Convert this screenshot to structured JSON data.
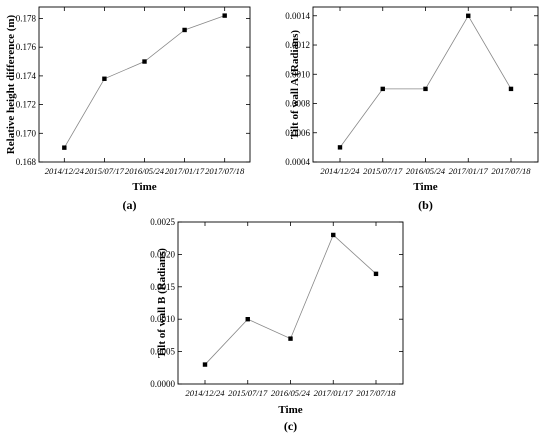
{
  "chart_data": [
    {
      "type": "line",
      "panel": "(a)",
      "categories": [
        "2014/12/24",
        "2015/07/17",
        "2016/05/24",
        "2017/01/17",
        "2017/07/18"
      ],
      "values": [
        0.169,
        0.1738,
        0.175,
        0.1772,
        0.1782
      ],
      "xlabel": "Time",
      "ylabel": "Relative height difference (m)",
      "ylim": [
        0.168,
        0.1788
      ],
      "yticks": [
        "0.168",
        "0.170",
        "0.172",
        "0.174",
        "0.176",
        "0.178"
      ],
      "grid": false,
      "line_color": "#888888",
      "marker_color": "#000000"
    },
    {
      "type": "line",
      "panel": "(b)",
      "categories": [
        "2014/12/24",
        "2015/07/17",
        "2016/05/24",
        "2017/01/17",
        "2017/07/18"
      ],
      "values": [
        0.0005,
        0.0009,
        0.0009,
        0.0014,
        0.0009
      ],
      "xlabel": "Time",
      "ylabel": "Tilt of wall A (Radians)",
      "ylim": [
        0.0004,
        0.00146
      ],
      "yticks": [
        "0.0004",
        "0.0006",
        "0.0008",
        "0.0010",
        "0.0012",
        "0.0014"
      ],
      "grid": false,
      "line_color": "#888888",
      "marker_color": "#000000"
    },
    {
      "type": "line",
      "panel": "(c)",
      "categories": [
        "2014/12/24",
        "2015/07/17",
        "2016/05/24",
        "2017/01/17",
        "2017/07/18"
      ],
      "values": [
        0.0003,
        0.001,
        0.0007,
        0.0023,
        0.0017
      ],
      "xlabel": "Time",
      "ylabel": "Tilt of wall B (Radians)",
      "ylim": [
        0.0,
        0.0025
      ],
      "yticks": [
        "0.0000",
        "0.0005",
        "0.0010",
        "0.0015",
        "0.0020",
        "0.0025"
      ],
      "grid": false,
      "line_color": "#888888",
      "marker_color": "#000000"
    }
  ]
}
